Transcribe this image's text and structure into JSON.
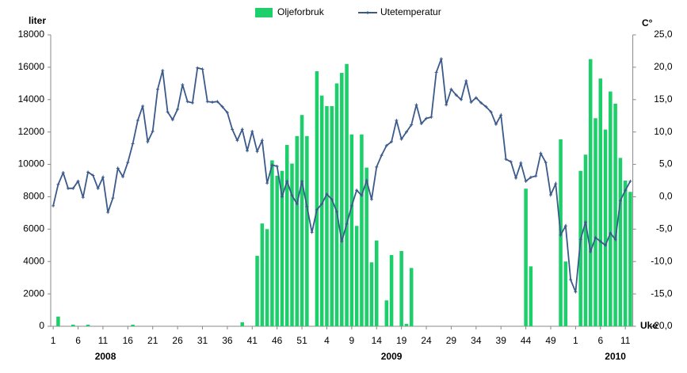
{
  "chart_data": {
    "type": "bar-line",
    "y_label": "liter",
    "y2_label": "C°",
    "x_label": "Uke",
    "year_labels": [
      "2008",
      "2009",
      "2010"
    ],
    "categories": [
      "1",
      null,
      null,
      null,
      null,
      "6",
      null,
      null,
      null,
      null,
      "11",
      null,
      null,
      null,
      null,
      "16",
      null,
      null,
      null,
      null,
      "21",
      null,
      null,
      null,
      null,
      "26",
      null,
      null,
      null,
      null,
      "31",
      null,
      null,
      null,
      null,
      "36",
      null,
      null,
      null,
      null,
      "41",
      null,
      null,
      null,
      null,
      "46",
      null,
      null,
      null,
      null,
      "51",
      null,
      null,
      null,
      null,
      "4",
      null,
      null,
      null,
      null,
      "9",
      null,
      null,
      null,
      null,
      "14",
      null,
      null,
      null,
      null,
      "19",
      null,
      null,
      null,
      null,
      "24",
      null,
      null,
      null,
      null,
      "29",
      null,
      null,
      null,
      null,
      "34",
      null,
      null,
      null,
      null,
      "39",
      null,
      null,
      null,
      null,
      "44",
      null,
      null,
      null,
      null,
      "49",
      null,
      null,
      null,
      null,
      "1",
      null,
      null,
      null,
      null,
      "6",
      null,
      null,
      null,
      null,
      "11",
      null
    ],
    "series": [
      {
        "name": "Oljeforbruk",
        "color": "#1ccf6a",
        "type": "bar",
        "values": [
          0,
          600,
          0,
          0,
          100,
          0,
          0,
          100,
          0,
          0,
          0,
          0,
          0,
          0,
          0,
          0,
          100,
          0,
          0,
          0,
          0,
          0,
          0,
          0,
          0,
          0,
          0,
          0,
          0,
          0,
          0,
          0,
          0,
          0,
          0,
          0,
          0,
          0,
          250,
          0,
          0,
          4350,
          6350,
          6000,
          10250,
          9300,
          9600,
          11200,
          10050,
          11750,
          13050,
          11750,
          0,
          15750,
          14250,
          13600,
          13600,
          15000,
          15650,
          16200,
          11850,
          6200,
          11850,
          9800,
          3950,
          5300,
          0,
          1600,
          4400,
          0,
          4650,
          150,
          3600,
          0,
          0,
          0,
          0,
          0,
          0,
          0,
          0,
          0,
          0,
          0,
          0,
          0,
          0,
          0,
          0,
          0,
          0,
          0,
          0,
          0,
          0,
          8500,
          3700,
          0,
          0,
          0,
          0,
          0,
          11550,
          4000,
          0,
          0,
          9600,
          10600,
          16500,
          12850,
          15300,
          12150,
          14500,
          13750,
          10400,
          9000,
          8300
        ]
      },
      {
        "name": "Utetemperatur",
        "color": "#3b5a8a",
        "type": "line",
        "axis": "y2",
        "values": [
          -1.4,
          1.9,
          3.7,
          1.3,
          1.3,
          2.4,
          -0.1,
          3.8,
          3.3,
          1.3,
          3.0,
          -2.4,
          -0.2,
          4.4,
          3.1,
          5.3,
          8.2,
          11.8,
          14.0,
          8.5,
          10.1,
          16.6,
          19.5,
          13.1,
          11.9,
          13.5,
          17.3,
          14.7,
          14.5,
          19.9,
          19.7,
          14.7,
          14.6,
          14.7,
          13.9,
          13.0,
          10.4,
          8.7,
          10.4,
          7.1,
          10.1,
          7.0,
          8.7,
          2.1,
          4.9,
          4.7,
          0.0,
          2.4,
          0.2,
          -1.1,
          2.4,
          -1.5,
          -5.5,
          -2.0,
          -1.1,
          0.4,
          -0.4,
          -2.3,
          -6.9,
          -4.2,
          -1.4,
          1.0,
          0.2,
          2.5,
          -0.4,
          4.6,
          6.4,
          7.9,
          8.5,
          11.8,
          8.9,
          10.0,
          11.1,
          14.2,
          11.3,
          12.1,
          12.3,
          19.2,
          21.3,
          14.2,
          16.6,
          15.7,
          15.0,
          17.9,
          14.6,
          15.3,
          14.5,
          13.9,
          13.1,
          11.2,
          12.6,
          5.8,
          5.4,
          2.9,
          5.2,
          2.4,
          3.0,
          3.2,
          6.7,
          5.3,
          0.3,
          2.0,
          -5.9,
          -4.5,
          -12.8,
          -14.7,
          -6.6,
          -3.9,
          -8.5,
          -6.3,
          -6.9,
          -7.5,
          -5.6,
          -6.6,
          -0.6,
          1.0,
          2.4
        ]
      }
    ],
    "ylim": [
      0,
      18000
    ],
    "yticks": [
      0,
      2000,
      4000,
      6000,
      8000,
      10000,
      12000,
      14000,
      16000,
      18000
    ],
    "y2lim": [
      -20,
      25
    ],
    "y2ticks": [
      {
        "value": -20,
        "label": "-20,0"
      },
      {
        "value": -15,
        "label": "-15,0"
      },
      {
        "value": -10,
        "label": "-10,0"
      },
      {
        "value": -5,
        "label": "-5,0"
      },
      {
        "value": 0,
        "label": "0,0"
      },
      {
        "value": 5,
        "label": "5,0"
      },
      {
        "value": 10,
        "label": "10,0"
      },
      {
        "value": 15,
        "label": "15,0"
      },
      {
        "value": 20,
        "label": "20,0"
      },
      {
        "value": 25,
        "label": "25,0"
      }
    ],
    "legend": "top"
  }
}
